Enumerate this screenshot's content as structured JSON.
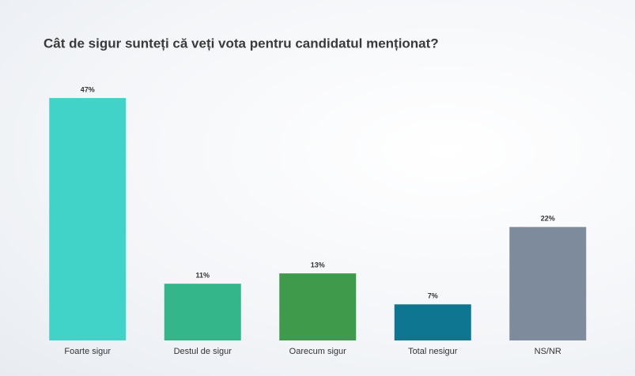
{
  "chart_data": {
    "type": "bar",
    "title": "Cât de sigur sunteți că veți vota pentru candidatul menționat?",
    "categories": [
      "Foarte sigur",
      "Destul de sigur",
      "Oarecum sigur",
      "Total nesigur",
      "NS/NR"
    ],
    "values": [
      47,
      11,
      13,
      7,
      22
    ],
    "value_labels": [
      "47%",
      "11%",
      "13%",
      "7%",
      "22%"
    ],
    "colors": [
      "#41d3c8",
      "#34b58a",
      "#3f9b4b",
      "#0f7692",
      "#7e8b9d"
    ]
  }
}
